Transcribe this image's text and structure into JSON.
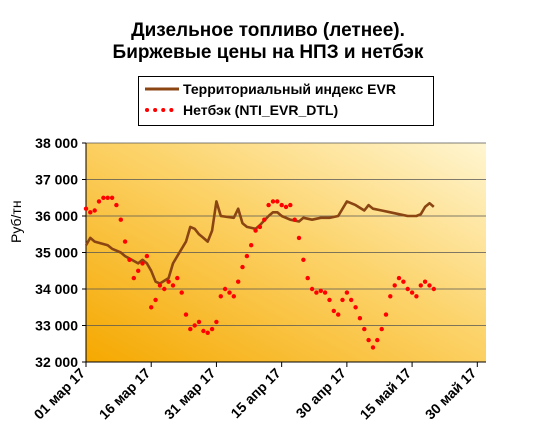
{
  "chart_data": {
    "type": "line",
    "title_line1": "Дизельное топливо (летнее).",
    "title_line2": "Биржевые цены на НПЗ  и нетбэк",
    "ylabel": "Руб/тн",
    "ylim": [
      32000,
      38000
    ],
    "y_ticks": [
      "32 000",
      "33 000",
      "34 000",
      "35 000",
      "36 000",
      "37 000",
      "38 000"
    ],
    "y_tick_values": [
      32000,
      33000,
      34000,
      35000,
      36000,
      37000,
      38000
    ],
    "x_ticks": [
      "01 мар 17",
      "16 мар 17",
      "31 мар 17",
      "15 апр 17",
      "30 апр 17",
      "15 май 17",
      "30 май 17"
    ],
    "x_tick_values": [
      "2017-03-01",
      "2017-03-16",
      "2017-03-31",
      "2017-04-15",
      "2017-04-30",
      "2017-05-15",
      "2017-05-30"
    ],
    "xlim": [
      "2017-03-01",
      "2017-06-01"
    ],
    "grid": "horizontal",
    "legend_position": "top",
    "series": [
      {
        "name": "Территориальный индекс EVR",
        "style": "solid",
        "color": "#8B4513",
        "points": [
          [
            "2017-03-01",
            35200
          ],
          [
            "2017-03-02",
            35400
          ],
          [
            "2017-03-03",
            35300
          ],
          [
            "2017-03-06",
            35200
          ],
          [
            "2017-03-07",
            35100
          ],
          [
            "2017-03-09",
            35000
          ],
          [
            "2017-03-10",
            34900
          ],
          [
            "2017-03-13",
            34700
          ],
          [
            "2017-03-14",
            34800
          ],
          [
            "2017-03-15",
            34700
          ],
          [
            "2017-03-16",
            34500
          ],
          [
            "2017-03-17",
            34200
          ],
          [
            "2017-03-18",
            34150
          ],
          [
            "2017-03-20",
            34300
          ],
          [
            "2017-03-21",
            34700
          ],
          [
            "2017-03-22",
            34900
          ],
          [
            "2017-03-24",
            35300
          ],
          [
            "2017-03-25",
            35700
          ],
          [
            "2017-03-26",
            35650
          ],
          [
            "2017-03-27",
            35500
          ],
          [
            "2017-03-28",
            35400
          ],
          [
            "2017-03-29",
            35300
          ],
          [
            "2017-03-30",
            35600
          ],
          [
            "2017-03-31",
            36400
          ],
          [
            "2017-04-01",
            36000
          ],
          [
            "2017-04-04",
            35950
          ],
          [
            "2017-04-05",
            36200
          ],
          [
            "2017-04-06",
            35800
          ],
          [
            "2017-04-07",
            35700
          ],
          [
            "2017-04-09",
            35650
          ],
          [
            "2017-04-10",
            35750
          ],
          [
            "2017-04-12",
            36000
          ],
          [
            "2017-04-13",
            36100
          ],
          [
            "2017-04-14",
            36100
          ],
          [
            "2017-04-15",
            36000
          ],
          [
            "2017-04-17",
            35900
          ],
          [
            "2017-04-19",
            35850
          ],
          [
            "2017-04-20",
            35950
          ],
          [
            "2017-04-22",
            35900
          ],
          [
            "2017-04-24",
            35950
          ],
          [
            "2017-04-26",
            35950
          ],
          [
            "2017-04-28",
            36000
          ],
          [
            "2017-04-30",
            36400
          ],
          [
            "2017-05-02",
            36300
          ],
          [
            "2017-05-04",
            36150
          ],
          [
            "2017-05-05",
            36300
          ],
          [
            "2017-05-06",
            36200
          ],
          [
            "2017-05-08",
            36150
          ],
          [
            "2017-05-10",
            36100
          ],
          [
            "2017-05-12",
            36050
          ],
          [
            "2017-05-14",
            36000
          ],
          [
            "2017-05-16",
            36000
          ],
          [
            "2017-05-17",
            36050
          ],
          [
            "2017-05-18",
            36250
          ],
          [
            "2017-05-19",
            36350
          ],
          [
            "2017-05-20",
            36250
          ]
        ]
      },
      {
        "name": "Нетбэк (NTI_EVR_DTL)",
        "style": "dotted",
        "color": "#FF0000",
        "points": [
          [
            "2017-03-01",
            36200
          ],
          [
            "2017-03-02",
            36100
          ],
          [
            "2017-03-03",
            36150
          ],
          [
            "2017-03-04",
            36400
          ],
          [
            "2017-03-05",
            36500
          ],
          [
            "2017-03-06",
            36500
          ],
          [
            "2017-03-07",
            36500
          ],
          [
            "2017-03-08",
            36300
          ],
          [
            "2017-03-09",
            35900
          ],
          [
            "2017-03-10",
            35300
          ],
          [
            "2017-03-11",
            34800
          ],
          [
            "2017-03-12",
            34300
          ],
          [
            "2017-03-13",
            34500
          ],
          [
            "2017-03-14",
            34700
          ],
          [
            "2017-03-15",
            34900
          ],
          [
            "2017-03-16",
            33500
          ],
          [
            "2017-03-17",
            33700
          ],
          [
            "2017-03-18",
            34100
          ],
          [
            "2017-03-19",
            34000
          ],
          [
            "2017-03-20",
            34200
          ],
          [
            "2017-03-21",
            34100
          ],
          [
            "2017-03-22",
            34300
          ],
          [
            "2017-03-23",
            33900
          ],
          [
            "2017-03-24",
            33300
          ],
          [
            "2017-03-25",
            32900
          ],
          [
            "2017-03-26",
            33000
          ],
          [
            "2017-03-27",
            33100
          ],
          [
            "2017-03-28",
            32850
          ],
          [
            "2017-03-29",
            32800
          ],
          [
            "2017-03-30",
            32900
          ],
          [
            "2017-03-31",
            33100
          ],
          [
            "2017-04-01",
            33800
          ],
          [
            "2017-04-02",
            34000
          ],
          [
            "2017-04-03",
            33900
          ],
          [
            "2017-04-04",
            33800
          ],
          [
            "2017-04-05",
            34200
          ],
          [
            "2017-04-06",
            34600
          ],
          [
            "2017-04-07",
            34900
          ],
          [
            "2017-04-08",
            35200
          ],
          [
            "2017-04-09",
            35600
          ],
          [
            "2017-04-10",
            35700
          ],
          [
            "2017-04-11",
            35900
          ],
          [
            "2017-04-12",
            36300
          ],
          [
            "2017-04-13",
            36400
          ],
          [
            "2017-04-14",
            36400
          ],
          [
            "2017-04-15",
            36300
          ],
          [
            "2017-04-16",
            36250
          ],
          [
            "2017-04-17",
            36300
          ],
          [
            "2017-04-18",
            35900
          ],
          [
            "2017-04-19",
            35400
          ],
          [
            "2017-04-20",
            34800
          ],
          [
            "2017-04-21",
            34300
          ],
          [
            "2017-04-22",
            34000
          ],
          [
            "2017-04-23",
            33900
          ],
          [
            "2017-04-24",
            33950
          ],
          [
            "2017-04-25",
            33900
          ],
          [
            "2017-04-26",
            33700
          ],
          [
            "2017-04-27",
            33400
          ],
          [
            "2017-04-28",
            33300
          ],
          [
            "2017-04-29",
            33700
          ],
          [
            "2017-04-30",
            33900
          ],
          [
            "2017-05-01",
            33700
          ],
          [
            "2017-05-02",
            33500
          ],
          [
            "2017-05-03",
            33200
          ],
          [
            "2017-05-04",
            32900
          ],
          [
            "2017-05-05",
            32600
          ],
          [
            "2017-05-06",
            32400
          ],
          [
            "2017-05-07",
            32600
          ],
          [
            "2017-05-08",
            32900
          ],
          [
            "2017-05-09",
            33300
          ],
          [
            "2017-05-10",
            33800
          ],
          [
            "2017-05-11",
            34100
          ],
          [
            "2017-05-12",
            34300
          ],
          [
            "2017-05-13",
            34200
          ],
          [
            "2017-05-14",
            34000
          ],
          [
            "2017-05-15",
            33900
          ],
          [
            "2017-05-16",
            33800
          ],
          [
            "2017-05-17",
            34100
          ],
          [
            "2017-05-18",
            34200
          ],
          [
            "2017-05-19",
            34100
          ],
          [
            "2017-05-20",
            34000
          ]
        ]
      }
    ]
  }
}
